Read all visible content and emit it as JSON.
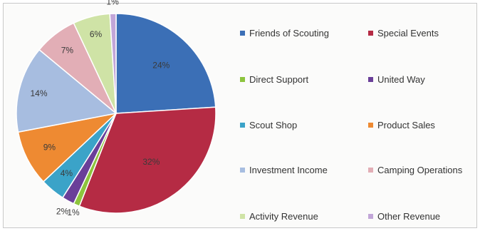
{
  "chart_data": {
    "type": "pie",
    "start_angle_deg": 0,
    "direction": "clockwise",
    "slices": [
      {
        "name": "Friends of Scouting",
        "label": "24%",
        "value": 24,
        "color": "#3b6fb6"
      },
      {
        "name": "Special Events",
        "label": "32%",
        "value": 32,
        "color": "#b52b44"
      },
      {
        "name": "Direct Support",
        "label": "1%",
        "value": 1,
        "color": "#8dc43d"
      },
      {
        "name": "United Way",
        "label": "2%",
        "value": 2,
        "color": "#6a3f99"
      },
      {
        "name": "Scout Shop",
        "label": "4%",
        "value": 4,
        "color": "#3ba3c8"
      },
      {
        "name": "Product Sales",
        "label": "9%",
        "value": 9,
        "color": "#ee8a32"
      },
      {
        "name": "Investment Income",
        "label": "14%",
        "value": 14,
        "color": "#a7bde0"
      },
      {
        "name": "Camping Operations",
        "label": "7%",
        "value": 7,
        "color": "#e2aeb6"
      },
      {
        "name": "Activity Revenue",
        "label": "6%",
        "value": 6,
        "color": "#cfe3a6"
      },
      {
        "name": "Other Revenue",
        "label": "1%",
        "value": 1,
        "color": "#c2a6d8"
      }
    ],
    "legend_position": "right",
    "legend_columns": 2
  }
}
